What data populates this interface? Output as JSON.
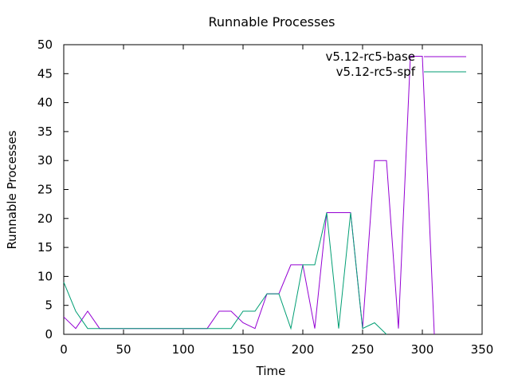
{
  "chart_data": {
    "type": "line",
    "title": "Runnable Processes",
    "xlabel": "Time",
    "ylabel": "Runnable Processes",
    "xlim": [
      0,
      350
    ],
    "ylim": [
      0,
      50
    ],
    "xticks": [
      0,
      50,
      100,
      150,
      200,
      250,
      300,
      350
    ],
    "yticks": [
      0,
      5,
      10,
      15,
      20,
      25,
      30,
      35,
      40,
      45,
      50
    ],
    "grid": false,
    "legend_position": "top-right",
    "series": [
      {
        "name": "v5.12-rc5-base",
        "color": "#9400d3",
        "x": [
          0,
          10,
          20,
          30,
          40,
          50,
          60,
          70,
          80,
          90,
          100,
          110,
          120,
          130,
          140,
          150,
          160,
          170,
          180,
          190,
          200,
          210,
          220,
          230,
          240,
          250,
          260,
          270,
          280,
          290,
          300,
          310
        ],
        "y": [
          3,
          1,
          4,
          1,
          1,
          1,
          1,
          1,
          1,
          1,
          1,
          1,
          1,
          4,
          4,
          2,
          1,
          7,
          7,
          12,
          12,
          1,
          21,
          21,
          21,
          1,
          30,
          30,
          1,
          48,
          48,
          0
        ]
      },
      {
        "name": "v5.12-rc5-spf",
        "color": "#009e73",
        "x": [
          0,
          10,
          20,
          30,
          40,
          50,
          60,
          70,
          80,
          90,
          100,
          110,
          120,
          130,
          140,
          150,
          160,
          170,
          180,
          190,
          200,
          210,
          220,
          230,
          240,
          250,
          260,
          270
        ],
        "y": [
          9,
          4,
          1,
          1,
          1,
          1,
          1,
          1,
          1,
          1,
          1,
          1,
          1,
          1,
          1,
          4,
          4,
          7,
          7,
          1,
          12,
          12,
          21,
          1,
          21,
          1,
          2,
          0
        ]
      }
    ]
  }
}
